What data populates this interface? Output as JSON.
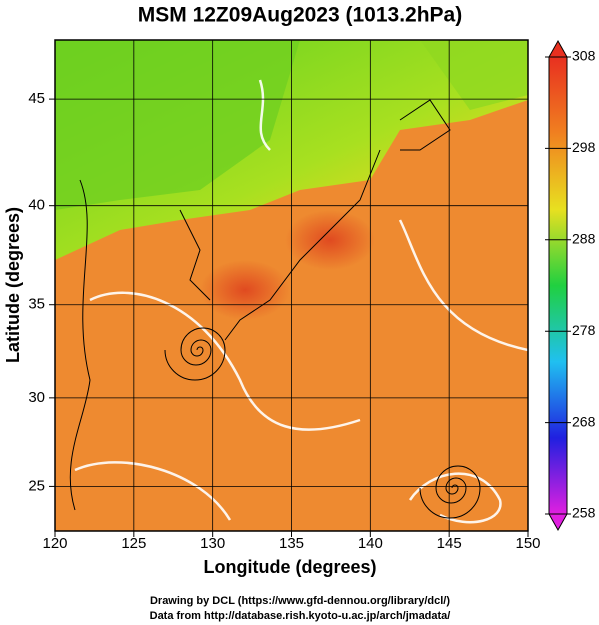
{
  "chart_data": {
    "type": "map",
    "title": "MSM 12Z09Aug2023 (1013.2hPa)",
    "xlabel": "Longitude (degrees)",
    "ylabel": "Latitude  (degrees)",
    "xlim": [
      120,
      150
    ],
    "xticks": [
      120,
      125,
      130,
      135,
      140,
      145,
      150
    ],
    "ylim": [
      22.4,
      47.6
    ],
    "yticks": [
      25,
      30,
      35,
      40,
      45
    ],
    "projection": "mercator",
    "grid": true,
    "colorbar": {
      "lim": [
        258,
        308
      ],
      "ticks": [
        258,
        268,
        278,
        288,
        298,
        308
      ],
      "colors": [
        "#e020e0",
        "#2020e0",
        "#20c0f0",
        "#20d040",
        "#e8e020",
        "#f08020",
        "#e83020"
      ]
    },
    "footer": [
      "Drawing by DCL (https://www.gfd-dennou.org/library/dcl/)",
      "Data from http://database.rish.kyoto-u.ac.jp/arch/jmadata/"
    ]
  }
}
